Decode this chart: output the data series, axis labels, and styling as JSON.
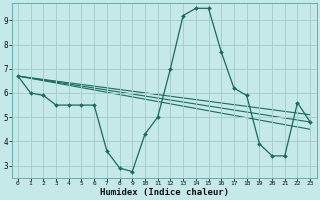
{
  "xlabel": "Humidex (Indice chaleur)",
  "background_color": "#c5e8e8",
  "grid_color": "#a8cece",
  "line_color": "#1a6b5a",
  "xlim": [
    -0.5,
    23.5
  ],
  "ylim": [
    2.5,
    9.7
  ],
  "xtick_labels": [
    "0",
    "1",
    "2",
    "3",
    "4",
    "5",
    "6",
    "7",
    "8",
    "9",
    "10",
    "11",
    "12",
    "13",
    "14",
    "15",
    "16",
    "17",
    "18",
    "19",
    "20",
    "21",
    "22",
    "23"
  ],
  "xtick_vals": [
    0,
    1,
    2,
    3,
    4,
    5,
    6,
    7,
    8,
    9,
    10,
    11,
    12,
    13,
    14,
    15,
    16,
    17,
    18,
    19,
    20,
    21,
    22,
    23
  ],
  "ytick_vals": [
    3,
    4,
    5,
    6,
    7,
    8,
    9
  ],
  "main_series": {
    "x": [
      0,
      1,
      2,
      3,
      4,
      5,
      6,
      7,
      8,
      9,
      10,
      11,
      12,
      13,
      14,
      15,
      16,
      17,
      18,
      19,
      20,
      21,
      22,
      23
    ],
    "y": [
      6.7,
      6.0,
      5.9,
      5.5,
      5.5,
      5.5,
      5.5,
      3.6,
      2.9,
      2.75,
      4.3,
      5.0,
      7.0,
      9.2,
      9.5,
      9.5,
      7.7,
      6.2,
      5.9,
      3.9,
      3.4,
      3.4,
      5.6,
      4.8
    ]
  },
  "trend_lines": [
    {
      "x": [
        0,
        23
      ],
      "y": [
        6.7,
        5.1
      ]
    },
    {
      "x": [
        0,
        23
      ],
      "y": [
        6.7,
        4.8
      ]
    },
    {
      "x": [
        0,
        23
      ],
      "y": [
        6.7,
        4.5
      ]
    }
  ]
}
